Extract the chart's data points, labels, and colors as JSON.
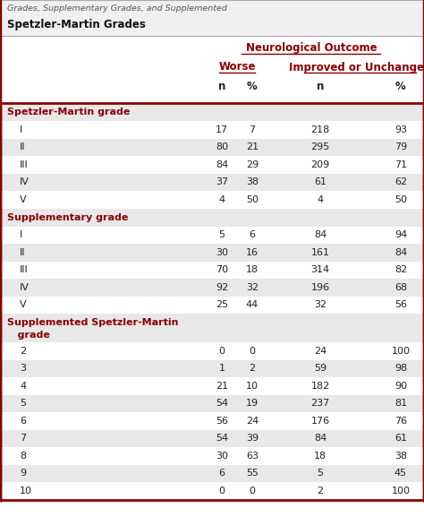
{
  "title_line1": "Grades, Supplementary Grades, and Supplemented",
  "title_line2": "Spetzler-Martin Grades",
  "header_main": "Neurological Outcome",
  "header_worse": "Worse",
  "header_improved": "Improved or Unchanged",
  "section1_title": "Spetzler-Martin grade",
  "section2_title": "Supplementary grade",
  "section3_line1": "Supplemented Spetzler-Martin",
  "section3_line2": "   grade",
  "rows": [
    {
      "label": "I",
      "n1": "17",
      "p1": "7",
      "n2": "218",
      "p2": "93",
      "section": 1,
      "shade": false
    },
    {
      "label": "II",
      "n1": "80",
      "p1": "21",
      "n2": "295",
      "p2": "79",
      "section": 1,
      "shade": true
    },
    {
      "label": "III",
      "n1": "84",
      "p1": "29",
      "n2": "209",
      "p2": "71",
      "section": 1,
      "shade": false
    },
    {
      "label": "IV",
      "n1": "37",
      "p1": "38",
      "n2": "61",
      "p2": "62",
      "section": 1,
      "shade": true
    },
    {
      "label": "V",
      "n1": "4",
      "p1": "50",
      "n2": "4",
      "p2": "50",
      "section": 1,
      "shade": false
    },
    {
      "label": "I",
      "n1": "5",
      "p1": "6",
      "n2": "84",
      "p2": "94",
      "section": 2,
      "shade": false
    },
    {
      "label": "II",
      "n1": "30",
      "p1": "16",
      "n2": "161",
      "p2": "84",
      "section": 2,
      "shade": true
    },
    {
      "label": "III",
      "n1": "70",
      "p1": "18",
      "n2": "314",
      "p2": "82",
      "section": 2,
      "shade": false
    },
    {
      "label": "IV",
      "n1": "92",
      "p1": "32",
      "n2": "196",
      "p2": "68",
      "section": 2,
      "shade": true
    },
    {
      "label": "V",
      "n1": "25",
      "p1": "44",
      "n2": "32",
      "p2": "56",
      "section": 2,
      "shade": false
    },
    {
      "label": "2",
      "n1": "0",
      "p1": "0",
      "n2": "24",
      "p2": "100",
      "section": 3,
      "shade": false
    },
    {
      "label": "3",
      "n1": "1",
      "p1": "2",
      "n2": "59",
      "p2": "98",
      "section": 3,
      "shade": true
    },
    {
      "label": "4",
      "n1": "21",
      "p1": "10",
      "n2": "182",
      "p2": "90",
      "section": 3,
      "shade": false
    },
    {
      "label": "5",
      "n1": "54",
      "p1": "19",
      "n2": "237",
      "p2": "81",
      "section": 3,
      "shade": true
    },
    {
      "label": "6",
      "n1": "56",
      "p1": "24",
      "n2": "176",
      "p2": "76",
      "section": 3,
      "shade": false
    },
    {
      "label": "7",
      "n1": "54",
      "p1": "39",
      "n2": "84",
      "p2": "61",
      "section": 3,
      "shade": true
    },
    {
      "label": "8",
      "n1": "30",
      "p1": "63",
      "n2": "18",
      "p2": "38",
      "section": 3,
      "shade": false
    },
    {
      "label": "9",
      "n1": "6",
      "p1": "55",
      "n2": "5",
      "p2": "45",
      "section": 3,
      "shade": true
    },
    {
      "label": "10",
      "n1": "0",
      "p1": "0",
      "n2": "2",
      "p2": "100",
      "section": 3,
      "shade": false
    }
  ],
  "red_color": "#8B0000",
  "shade_color": "#e8e8e8",
  "section_shade": "#e0e0e0",
  "white_color": "#ffffff",
  "border_red": "#8B0000",
  "text_dark": "#222222"
}
